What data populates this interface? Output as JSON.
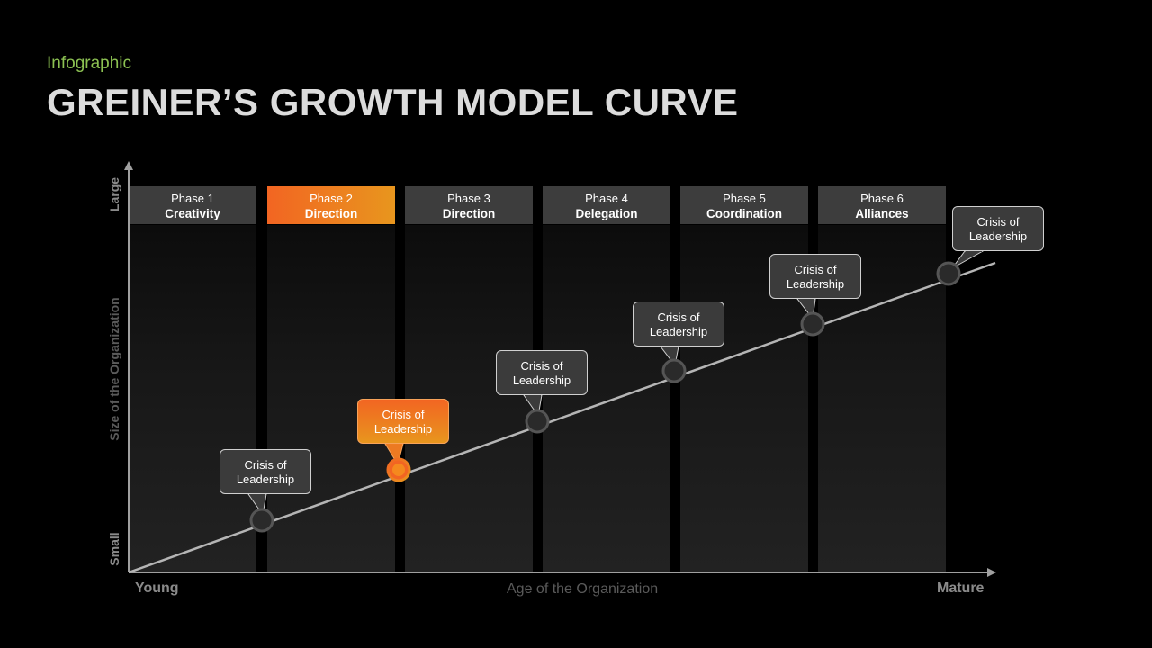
{
  "header": {
    "kicker": "Infographic",
    "title": "GREINER’S GROWTH MODEL CURVE"
  },
  "axes": {
    "y_label": "Size of the Organization",
    "y_top": "Large",
    "y_bottom": "Small",
    "x_label": "Age of the Organization",
    "x_left": "Young",
    "x_right": "Mature"
  },
  "phases": [
    {
      "label": "Phase 1",
      "name": "Creativity",
      "active": false
    },
    {
      "label": "Phase 2",
      "name": "Direction",
      "active": true
    },
    {
      "label": "Phase 3",
      "name": "Direction",
      "active": false
    },
    {
      "label": "Phase 4",
      "name": "Delegation",
      "active": false
    },
    {
      "label": "Phase 5",
      "name": "Coordination",
      "active": false
    },
    {
      "label": "Phase 6",
      "name": "Alliances",
      "active": false
    }
  ],
  "crises": [
    {
      "line1": "Crisis of",
      "line2": "Leadership",
      "active": false
    },
    {
      "line1": "Crisis of",
      "line2": "Leadership",
      "active": true
    },
    {
      "line1": "Crisis of",
      "line2": "Leadership",
      "active": false
    },
    {
      "line1": "Crisis of",
      "line2": "Leadership",
      "active": false
    },
    {
      "line1": "Crisis of",
      "line2": "Leadership",
      "active": false
    },
    {
      "line1": "Crisis of",
      "line2": "Leadership",
      "active": false
    }
  ],
  "colors": {
    "accent": "#f26522",
    "accent_end": "#e8961e",
    "kicker": "#8cc152",
    "axis": "#a0a0a0"
  }
}
